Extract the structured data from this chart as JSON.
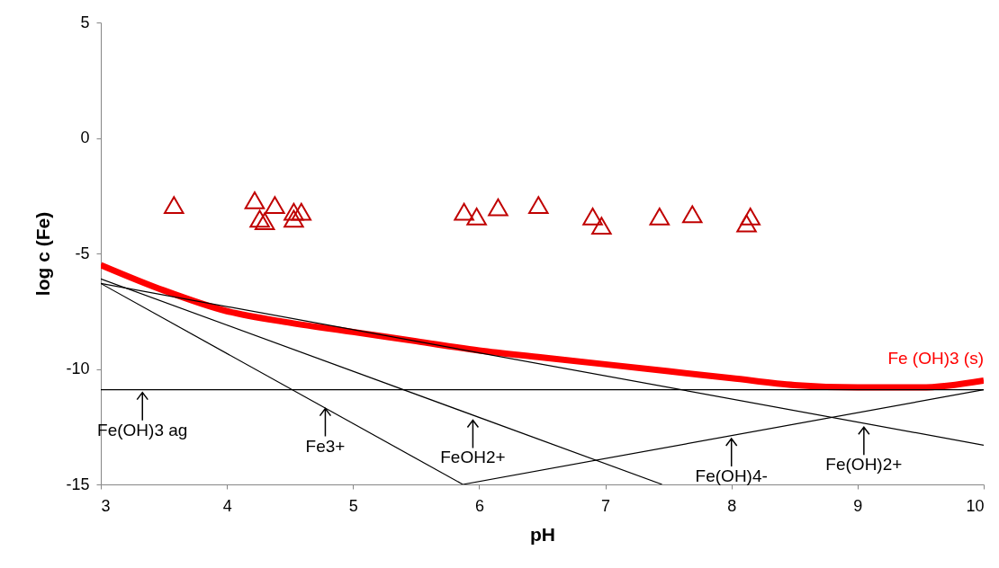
{
  "chart_data": {
    "type": "line",
    "xlabel": "pH",
    "ylabel": "log c (Fe)",
    "xlim": [
      3,
      10
    ],
    "xticks": [
      3,
      4,
      5,
      6,
      7,
      8,
      9,
      10
    ],
    "ylim": [
      -15,
      5
    ],
    "yticks": [
      -15,
      -10,
      -5,
      0,
      5
    ],
    "grid": false,
    "series": [
      {
        "type": "scatter",
        "marker": "triangle",
        "color": "#c00000",
        "x": [
          3.58,
          4.22,
          4.38,
          4.26,
          4.3,
          4.53,
          4.53,
          4.59,
          5.88,
          5.98,
          6.15,
          6.47,
          6.9,
          6.97,
          7.43,
          7.69,
          8.15,
          8.12
        ],
        "values": [
          -2.9,
          -2.7,
          -2.9,
          -3.5,
          -3.6,
          -3.2,
          -3.5,
          -3.2,
          -3.2,
          -3.4,
          -3.0,
          -2.9,
          -3.4,
          -3.8,
          -3.4,
          -3.3,
          -3.4,
          -3.7
        ]
      },
      {
        "type": "line",
        "name": "Fe (OH)3 (s)",
        "color": "#ff0000",
        "x": [
          3,
          3.5,
          4,
          4.5,
          5,
          5.5,
          6,
          6.5,
          7,
          7.5,
          8,
          8.5,
          9,
          9.5,
          10
        ],
        "values": [
          -5.5,
          -6.6,
          -7.5,
          -8.0,
          -8.4,
          -8.8,
          -9.2,
          -9.5,
          -9.8,
          -10.1,
          -10.4,
          -10.7,
          -10.8,
          -10.8,
          -10.5
        ]
      },
      {
        "type": "line",
        "color": "#000000",
        "x": [
          3,
          10
        ],
        "values": [
          -10.9,
          -10.9
        ]
      },
      {
        "type": "line",
        "color": "#000000",
        "x": [
          3,
          5.87
        ],
        "values": [
          -6.3,
          -15
        ]
      },
      {
        "type": "line",
        "color": "#000000",
        "x": [
          3,
          7.45
        ],
        "values": [
          -6.1,
          -15
        ]
      },
      {
        "type": "line",
        "color": "#000000",
        "x": [
          3,
          10
        ],
        "values": [
          -6.3,
          -13.3
        ]
      },
      {
        "type": "line",
        "color": "#000000",
        "x": [
          5.87,
          10
        ],
        "values": [
          -15,
          -10.9
        ]
      }
    ],
    "annotations": [
      {
        "text": "Fe(OH)3 ag",
        "x": 3.33,
        "y": -10.9
      },
      {
        "text": "Fe3+",
        "x": 4.78,
        "y": -11.6
      },
      {
        "text": "FeOH2+",
        "x": 5.95,
        "y": -12.1
      },
      {
        "text": "Fe(OH)4-",
        "x": 8.0,
        "y": -12.9
      },
      {
        "text": "Fe(OH)2+",
        "x": 9.05,
        "y": -12.4
      }
    ]
  }
}
